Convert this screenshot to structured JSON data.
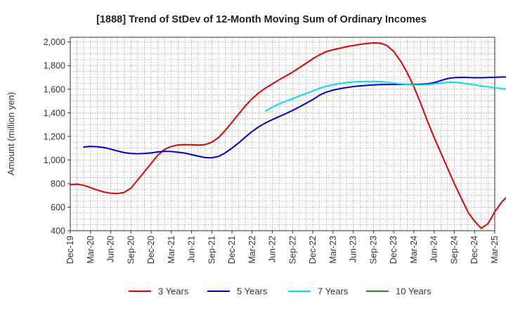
{
  "chart_data": {
    "type": "line",
    "title": "[1888]  Trend of StDev of 12-Month Moving Sum of Ordinary Incomes",
    "xlabel": "",
    "ylabel": "Amount (million yen)",
    "ylim": [
      400,
      2040
    ],
    "yticks": [
      400,
      600,
      800,
      1000,
      1200,
      1400,
      1600,
      1800,
      2000
    ],
    "ytick_labels": [
      "400",
      "600",
      "800",
      "1,000",
      "1,200",
      "1,400",
      "1,600",
      "1,800",
      "2,000"
    ],
    "xlim_months": [
      0,
      63
    ],
    "xticks": [
      0,
      3,
      6,
      9,
      12,
      15,
      18,
      21,
      24,
      27,
      30,
      33,
      36,
      39,
      42,
      45,
      48,
      51,
      54,
      57,
      60,
      63
    ],
    "xtick_labels": [
      "Dec-19",
      "Mar-20",
      "Jun-20",
      "Sep-20",
      "Dec-20",
      "Mar-21",
      "Jun-21",
      "Sep-21",
      "Dec-21",
      "Mar-22",
      "Jun-22",
      "Sep-22",
      "Dec-22",
      "Mar-23",
      "Jun-23",
      "Sep-23",
      "Dec-23",
      "Mar-24",
      "Jun-24",
      "Sep-24",
      "Dec-24",
      "Mar-25"
    ],
    "grid": true,
    "legend_position": "bottom",
    "series": [
      {
        "name": "3 Years",
        "color": "#e00000",
        "start_month": 0,
        "values": [
          790,
          795,
          785,
          765,
          745,
          728,
          718,
          715,
          725,
          760,
          830,
          900,
          970,
          1040,
          1090,
          1115,
          1127,
          1130,
          1128,
          1126,
          1130,
          1150,
          1190,
          1250,
          1320,
          1390,
          1460,
          1520,
          1570,
          1610,
          1645,
          1680,
          1712,
          1745,
          1782,
          1820,
          1858,
          1892,
          1918,
          1934,
          1947,
          1960,
          1970,
          1980,
          1988,
          1992,
          1990,
          1970,
          1920,
          1840,
          1740,
          1620,
          1480,
          1330,
          1190,
          1060,
          930,
          800,
          680,
          560,
          480,
          420,
          460,
          560,
          640,
          700,
          735
        ]
      },
      {
        "name": "5 Years",
        "color": "#0000cc",
        "start_month": 2,
        "values": [
          1110,
          1115,
          1112,
          1105,
          1092,
          1076,
          1062,
          1055,
          1052,
          1055,
          1060,
          1068,
          1073,
          1072,
          1065,
          1058,
          1045,
          1032,
          1020,
          1018,
          1030,
          1060,
          1100,
          1145,
          1195,
          1242,
          1282,
          1315,
          1342,
          1368,
          1393,
          1420,
          1450,
          1480,
          1512,
          1550,
          1575,
          1592,
          1604,
          1614,
          1622,
          1628,
          1632,
          1636,
          1639,
          1640,
          1640,
          1641,
          1640,
          1640,
          1641,
          1645,
          1655,
          1673,
          1690,
          1698,
          1700,
          1699,
          1697,
          1697,
          1699,
          1701,
          1703,
          1703
        ]
      },
      {
        "name": "7 Years",
        "color": "#00e0f0",
        "start_month": 29,
        "values": [
          1415,
          1448,
          1475,
          1498,
          1520,
          1542,
          1563,
          1585,
          1608,
          1625,
          1638,
          1648,
          1656,
          1661,
          1664,
          1666,
          1666,
          1664,
          1659,
          1652,
          1645,
          1640,
          1637,
          1636,
          1639,
          1645,
          1653,
          1658,
          1658,
          1653,
          1645,
          1637,
          1628,
          1620,
          1612,
          1605,
          1598
        ]
      },
      {
        "name": "10 Years",
        "color": "#228b22",
        "start_month": 0,
        "values": []
      }
    ]
  }
}
